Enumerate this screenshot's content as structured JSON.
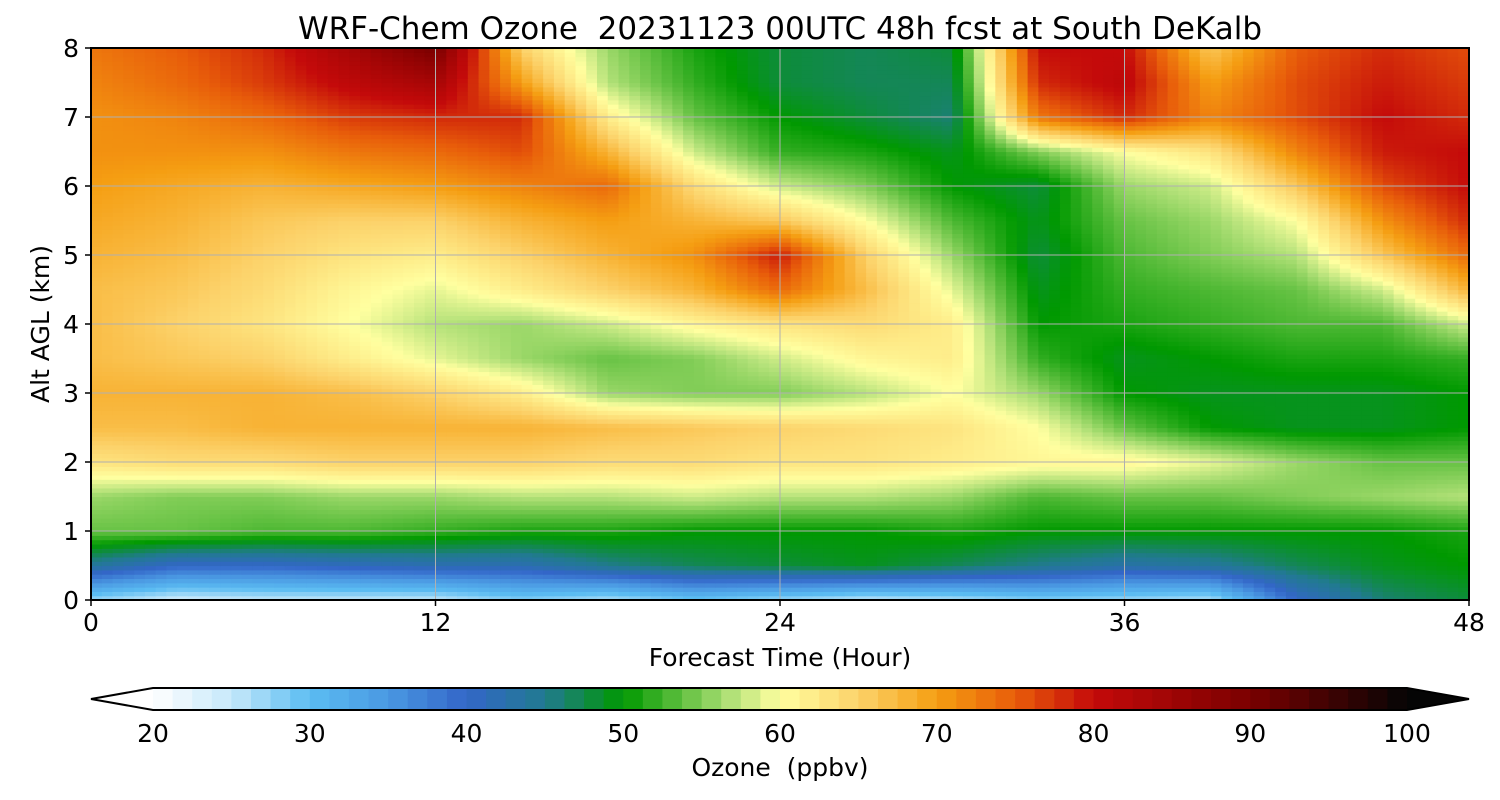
{
  "chart_data": {
    "type": "heatmap",
    "title": "WRF-Chem Ozone  20231123 00UTC 48h fcst at South DeKalb",
    "xlabel": "Forecast Time (Hour)",
    "ylabel": "Alt AGL (km)",
    "xlim": [
      0,
      48
    ],
    "ylim": [
      0,
      8
    ],
    "x_ticks": [
      0,
      12,
      24,
      36,
      48
    ],
    "y_ticks": [
      0,
      1,
      2,
      3,
      4,
      5,
      6,
      7,
      8
    ],
    "grid": true,
    "x": [
      0,
      3,
      6,
      9,
      12,
      15,
      18,
      21,
      24,
      27,
      30,
      33,
      36,
      39,
      42,
      45,
      48
    ],
    "y": [
      0,
      0.5,
      1,
      1.5,
      2,
      2.5,
      3,
      3.5,
      4,
      4.5,
      5,
      5.5,
      6,
      6.5,
      7,
      7.5,
      8
    ],
    "z": [
      [
        27,
        24,
        25,
        25,
        25,
        28,
        26,
        29,
        27,
        25,
        26,
        28,
        27,
        26,
        40,
        46,
        48
      ],
      [
        44,
        40,
        40,
        41,
        42,
        42,
        45,
        47,
        48,
        49,
        47,
        45,
        43,
        44,
        47,
        49,
        50
      ],
      [
        54,
        54,
        53,
        53,
        52,
        51,
        51,
        50,
        50,
        50,
        51,
        50,
        50,
        50,
        50,
        50,
        51
      ],
      [
        56,
        55,
        55,
        56,
        56,
        57,
        57,
        58,
        57,
        57,
        56,
        53,
        54,
        54,
        55,
        56,
        57
      ],
      [
        63,
        64,
        64,
        65,
        65,
        65,
        64,
        64,
        63,
        63,
        62,
        61,
        61,
        59,
        56,
        54,
        54
      ],
      [
        67,
        67,
        68,
        68,
        68,
        68,
        67,
        66,
        65,
        64,
        63,
        60,
        54,
        50,
        49,
        49,
        50
      ],
      [
        68,
        68,
        68,
        67,
        65,
        62,
        56,
        55,
        55,
        57,
        60,
        56,
        50,
        49,
        49,
        49,
        50
      ],
      [
        67,
        66,
        65,
        62,
        59,
        56,
        54,
        55,
        58,
        61,
        62,
        52,
        49,
        50,
        51,
        51,
        52
      ],
      [
        67,
        65,
        63,
        60,
        57,
        56,
        58,
        61,
        63,
        64,
        62,
        50,
        51,
        52,
        53,
        53,
        58
      ],
      [
        67,
        66,
        64,
        61,
        59,
        62,
        65,
        68,
        74,
        67,
        59,
        49,
        52,
        53,
        54,
        58,
        68
      ],
      [
        68,
        67,
        65,
        63,
        62,
        65,
        68,
        71,
        79,
        65,
        56,
        48,
        53,
        55,
        57,
        66,
        74
      ],
      [
        69,
        68,
        66,
        65,
        65,
        68,
        70,
        68,
        66,
        60,
        53,
        49,
        54,
        56,
        60,
        71,
        78
      ],
      [
        70,
        69,
        68,
        69,
        70,
        72,
        74,
        64,
        58,
        55,
        50,
        48,
        56,
        58,
        66,
        76,
        80
      ],
      [
        71,
        71,
        71,
        73,
        74,
        76,
        68,
        58,
        52,
        51,
        49,
        55,
        60,
        63,
        72,
        79,
        80
      ],
      [
        71,
        72,
        74,
        77,
        78,
        78,
        62,
        54,
        50,
        48,
        46,
        73,
        78,
        72,
        76,
        80,
        78
      ],
      [
        72,
        74,
        77,
        81,
        84,
        70,
        57,
        52,
        48,
        47,
        47,
        78,
        81,
        70,
        76,
        79,
        77
      ],
      [
        73,
        75,
        78,
        84,
        90,
        65,
        56,
        51,
        48,
        47,
        48,
        80,
        80,
        66,
        75,
        78,
        76
      ]
    ]
  },
  "colorbar": {
    "label": "Ozone  (ppbv)",
    "min": 20,
    "max": 100,
    "ticks": [
      20,
      30,
      40,
      50,
      60,
      70,
      80,
      90,
      100
    ],
    "extend": "both",
    "colormap": [
      {
        "v": 20,
        "c": "#ffffff"
      },
      {
        "v": 25,
        "c": "#c6e8fa"
      },
      {
        "v": 30,
        "c": "#5bbcf2"
      },
      {
        "v": 35,
        "c": "#4a98e2"
      },
      {
        "v": 40,
        "c": "#3366c8"
      },
      {
        "v": 45,
        "c": "#217a90"
      },
      {
        "v": 50,
        "c": "#009900"
      },
      {
        "v": 53,
        "c": "#4db833"
      },
      {
        "v": 57,
        "c": "#b5e27a"
      },
      {
        "v": 60,
        "c": "#ffffa0"
      },
      {
        "v": 65,
        "c": "#fcd26a"
      },
      {
        "v": 70,
        "c": "#f59e12"
      },
      {
        "v": 75,
        "c": "#e85d0a"
      },
      {
        "v": 80,
        "c": "#c40a0a"
      },
      {
        "v": 90,
        "c": "#7a0000"
      },
      {
        "v": 100,
        "c": "#050505"
      }
    ]
  }
}
